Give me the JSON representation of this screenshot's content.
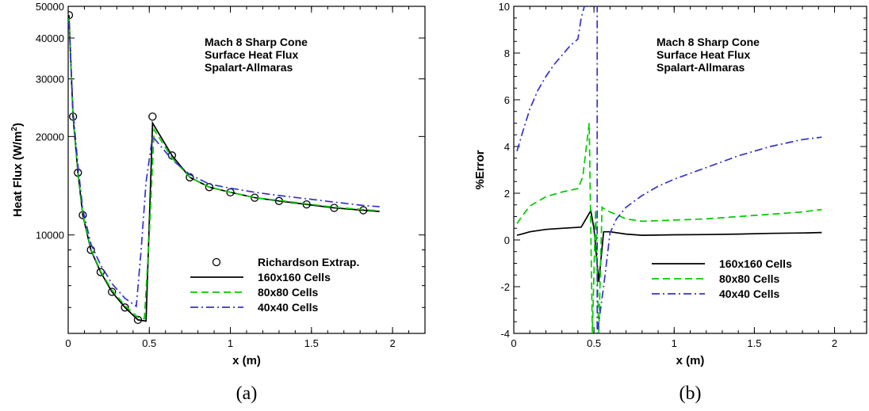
{
  "chart_data": [
    {
      "type": "line",
      "panel_label": "(a)",
      "xlabel": "x (m)",
      "ylabel": "Heat Flux (W/m",
      "ylabel_sup": "2",
      "ylabel_close": ")",
      "yscale": "log",
      "xlim": [
        0,
        2.2
      ],
      "ylim": [
        5000,
        50000
      ],
      "x_ticks": [
        0,
        0.5,
        1,
        1.5,
        2
      ],
      "x_tick_labels": [
        "0",
        "0.5",
        "1",
        "1.5",
        "2"
      ],
      "y_ticks": [
        10000,
        20000,
        30000,
        40000,
        50000
      ],
      "y_tick_labels": [
        "10000",
        "20000",
        "30000",
        "40000",
        "50000"
      ],
      "annotation": [
        "Mach 8 Sharp Cone",
        "Surface Heat Flux",
        "Spalart-Allmaras"
      ],
      "legend_position": "bottom-right",
      "series": [
        {
          "name": "Richardson Extrap.",
          "style": "markers",
          "color": "#000000",
          "x": [
            0.005,
            0.03,
            0.06,
            0.09,
            0.14,
            0.2,
            0.27,
            0.35,
            0.43,
            0.52,
            0.64,
            0.75,
            0.87,
            1.0,
            1.15,
            1.3,
            1.47,
            1.64,
            1.82
          ],
          "y": [
            47000,
            23000,
            15500,
            11500,
            9000,
            7700,
            6700,
            6000,
            5500,
            23000,
            17500,
            15000,
            14000,
            13500,
            13000,
            12700,
            12400,
            12100,
            11900
          ]
        },
        {
          "name": "160x160 Cells",
          "style": "solid",
          "color": "#000000",
          "x": [
            0.005,
            0.03,
            0.06,
            0.09,
            0.14,
            0.2,
            0.27,
            0.35,
            0.43,
            0.48,
            0.52,
            0.64,
            0.75,
            0.87,
            1.0,
            1.15,
            1.3,
            1.47,
            1.64,
            1.82,
            1.92
          ],
          "y": [
            47000,
            23000,
            15500,
            11500,
            9000,
            7700,
            6700,
            6000,
            5500,
            5450,
            22000,
            17500,
            15000,
            14000,
            13500,
            13000,
            12700,
            12400,
            12100,
            11900,
            11800
          ]
        },
        {
          "name": "80x80 Cells",
          "style": "dashed",
          "color": "#00cc00",
          "x": [
            0.005,
            0.03,
            0.06,
            0.09,
            0.14,
            0.2,
            0.27,
            0.35,
            0.43,
            0.47,
            0.5,
            0.53,
            0.64,
            0.75,
            0.87,
            1.0,
            1.15,
            1.3,
            1.47,
            1.64,
            1.82,
            1.92
          ],
          "y": [
            46000,
            23200,
            15600,
            11600,
            9050,
            7750,
            6780,
            6080,
            5600,
            5550,
            10000,
            21000,
            17200,
            15000,
            14000,
            13500,
            13000,
            12750,
            12450,
            12150,
            11950,
            11850
          ]
        },
        {
          "name": "40x40 Cells",
          "style": "dashdot",
          "color": "#3333cc",
          "x": [
            0.005,
            0.03,
            0.06,
            0.09,
            0.14,
            0.2,
            0.27,
            0.35,
            0.42,
            0.45,
            0.48,
            0.52,
            0.64,
            0.75,
            0.87,
            1.0,
            1.15,
            1.3,
            1.47,
            1.64,
            1.82,
            1.92
          ],
          "y": [
            45000,
            24000,
            16300,
            12000,
            9400,
            8100,
            7100,
            6400,
            6050,
            9000,
            14500,
            20000,
            17000,
            15300,
            14300,
            13900,
            13500,
            13200,
            12900,
            12600,
            12300,
            12200
          ]
        }
      ]
    },
    {
      "type": "line",
      "panel_label": "(b)",
      "xlabel": "x (m)",
      "ylabel": "%Error",
      "xlim": [
        0,
        2.2
      ],
      "ylim": [
        -4,
        10
      ],
      "x_ticks": [
        0,
        0.5,
        1,
        1.5,
        2
      ],
      "x_tick_labels": [
        "0",
        "0.5",
        "1",
        "1.5",
        "2"
      ],
      "y_ticks": [
        -4,
        -2,
        0,
        2,
        4,
        6,
        8,
        10
      ],
      "y_tick_labels": [
        "-4",
        "-2",
        "0",
        "2",
        "4",
        "6",
        "8",
        "10"
      ],
      "annotation": [
        "Mach 8 Sharp Cone",
        "Surface Heat Flux",
        "Spalart-Allmaras"
      ],
      "legend_position": "bottom-right",
      "series": [
        {
          "name": "160x160 Cells",
          "style": "solid",
          "color": "#000000",
          "x": [
            0.02,
            0.05,
            0.1,
            0.2,
            0.3,
            0.42,
            0.48,
            0.5,
            0.53,
            0.56,
            0.6,
            0.7,
            0.8,
            1.0,
            1.2,
            1.4,
            1.6,
            1.8,
            1.92
          ],
          "y": [
            0.2,
            0.25,
            0.35,
            0.45,
            0.5,
            0.55,
            1.25,
            0.5,
            -1.8,
            0.35,
            0.35,
            0.25,
            0.2,
            0.22,
            0.23,
            0.25,
            0.28,
            0.3,
            0.32
          ]
        },
        {
          "name": "80x80 Cells",
          "style": "dashed",
          "color": "#00cc00",
          "x": [
            0.02,
            0.05,
            0.1,
            0.2,
            0.3,
            0.4,
            0.43,
            0.47,
            0.49,
            0.51,
            0.53,
            0.55,
            0.57,
            0.6,
            0.7,
            0.8,
            1.0,
            1.2,
            1.4,
            1.6,
            1.8,
            1.92
          ],
          "y": [
            0.7,
            1.0,
            1.45,
            1.85,
            2.05,
            2.2,
            2.7,
            5.0,
            -4.0,
            1.3,
            -4.0,
            1.4,
            1.3,
            1.2,
            0.9,
            0.8,
            0.85,
            0.9,
            1.0,
            1.1,
            1.2,
            1.3
          ]
        },
        {
          "name": "40x40 Cells",
          "style": "dashdot",
          "color": "#3333cc",
          "x": [
            0.02,
            0.05,
            0.1,
            0.15,
            0.2,
            0.25,
            0.3,
            0.35,
            0.4,
            0.42,
            0.44,
            0.52,
            0.52,
            0.56,
            0.6,
            0.64,
            0.7,
            0.8,
            0.9,
            1.0,
            1.2,
            1.4,
            1.6,
            1.8,
            1.92
          ],
          "y": [
            3.8,
            4.5,
            5.6,
            6.4,
            7.0,
            7.5,
            7.9,
            8.3,
            8.6,
            9.5,
            10.0,
            10.0,
            -4.0,
            -2.0,
            0.3,
            0.9,
            1.4,
            1.9,
            2.3,
            2.6,
            3.1,
            3.6,
            4.0,
            4.3,
            4.4
          ]
        }
      ]
    }
  ]
}
